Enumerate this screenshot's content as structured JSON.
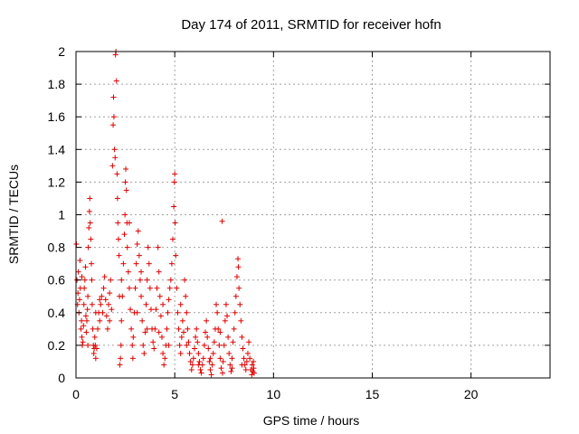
{
  "chart_data": {
    "type": "scatter",
    "title": "Day 174 of 2011, SRMTID for receiver hofn",
    "xlabel": "GPS time / hours",
    "ylabel": "SRMTID / TECUs",
    "xlim": [
      0,
      24
    ],
    "ylim": [
      0,
      2
    ],
    "xticks": [
      0,
      5,
      10,
      15,
      20
    ],
    "yticks": [
      0,
      0.2,
      0.4,
      0.6,
      0.8,
      1,
      1.2,
      1.4,
      1.6,
      1.8,
      2
    ],
    "grid": true,
    "marker": "+",
    "marker_color": "#e00000",
    "series": [
      {
        "points": [
          [
            0.02,
            0.82
          ],
          [
            0.05,
            0.6
          ],
          [
            0.08,
            0.45
          ],
          [
            0.1,
            0.52
          ],
          [
            0.12,
            0.65
          ],
          [
            0.15,
            0.4
          ],
          [
            0.18,
            0.48
          ],
          [
            0.2,
            0.72
          ],
          [
            0.22,
            0.55
          ],
          [
            0.25,
            0.3
          ],
          [
            0.28,
            0.35
          ],
          [
            0.3,
            0.25
          ],
          [
            0.32,
            0.2
          ],
          [
            0.35,
            0.22
          ],
          [
            0.38,
            0.32
          ],
          [
            0.4,
            0.45
          ],
          [
            0.42,
            0.55
          ],
          [
            0.45,
            0.6
          ],
          [
            0.48,
            0.68
          ],
          [
            0.5,
            0.38
          ],
          [
            0.52,
            0.28
          ],
          [
            0.55,
            0.35
          ],
          [
            0.58,
            0.42
          ],
          [
            0.6,
            0.5
          ],
          [
            0.62,
            0.8
          ],
          [
            0.65,
            0.92
          ],
          [
            0.68,
            1.02
          ],
          [
            0.7,
            1.1
          ],
          [
            0.72,
            0.95
          ],
          [
            0.75,
            0.85
          ],
          [
            0.78,
            0.7
          ],
          [
            0.8,
            0.6
          ],
          [
            0.82,
            0.45
          ],
          [
            0.85,
            0.3
          ],
          [
            0.88,
            0.2
          ],
          [
            0.9,
            0.15
          ],
          [
            0.92,
            0.18
          ],
          [
            0.95,
            0.25
          ],
          [
            0.98,
            0.2
          ],
          [
            1.0,
            0.12
          ],
          [
            1.05,
            0.18
          ],
          [
            1.1,
            0.3
          ],
          [
            1.15,
            0.4
          ],
          [
            1.2,
            0.35
          ],
          [
            1.25,
            0.45
          ],
          [
            1.3,
            0.5
          ],
          [
            1.35,
            0.4
          ],
          [
            1.4,
            0.55
          ],
          [
            1.45,
            0.62
          ],
          [
            1.5,
            0.48
          ],
          [
            1.55,
            0.38
          ],
          [
            1.6,
            0.3
          ],
          [
            1.65,
            0.45
          ],
          [
            1.7,
            0.52
          ],
          [
            1.75,
            0.6
          ],
          [
            1.8,
            0.42
          ],
          [
            1.85,
            1.3
          ],
          [
            1.88,
            1.55
          ],
          [
            1.9,
            1.72
          ],
          [
            1.92,
            1.6
          ],
          [
            1.95,
            1.4
          ],
          [
            1.98,
            1.35
          ],
          [
            2.0,
            1.98
          ],
          [
            2.02,
            2.0
          ],
          [
            2.05,
            1.82
          ],
          [
            2.08,
            1.25
          ],
          [
            2.1,
            1.1
          ],
          [
            2.12,
            0.95
          ],
          [
            2.15,
            0.85
          ],
          [
            2.18,
            0.75
          ],
          [
            2.2,
            0.5
          ],
          [
            2.22,
            0.08
          ],
          [
            2.25,
            0.12
          ],
          [
            2.28,
            0.2
          ],
          [
            2.3,
            0.35
          ],
          [
            2.35,
            0.5
          ],
          [
            2.4,
            0.7
          ],
          [
            2.45,
            0.88
          ],
          [
            2.48,
            1.0
          ],
          [
            2.5,
            1.2
          ],
          [
            2.52,
            1.28
          ],
          [
            2.55,
            1.15
          ],
          [
            2.58,
            0.95
          ],
          [
            2.6,
            0.8
          ],
          [
            2.65,
            0.65
          ],
          [
            2.7,
            0.55
          ],
          [
            2.75,
            0.42
          ],
          [
            2.8,
            0.3
          ],
          [
            2.85,
            0.2
          ],
          [
            2.88,
            0.12
          ],
          [
            2.9,
            0.25
          ],
          [
            2.95,
            0.4
          ],
          [
            3.0,
            0.55
          ],
          [
            3.05,
            0.7
          ],
          [
            3.1,
            0.82
          ],
          [
            3.15,
            0.9
          ],
          [
            3.2,
            0.75
          ],
          [
            3.25,
            0.6
          ],
          [
            3.3,
            0.5
          ],
          [
            3.35,
            0.35
          ],
          [
            3.4,
            0.2
          ],
          [
            3.45,
            0.15
          ],
          [
            3.5,
            0.28
          ],
          [
            3.55,
            0.45
          ],
          [
            3.6,
            0.6
          ],
          [
            3.65,
            0.8
          ],
          [
            3.7,
            0.7
          ],
          [
            3.75,
            0.55
          ],
          [
            3.8,
            0.42
          ],
          [
            3.85,
            0.3
          ],
          [
            3.9,
            0.22
          ],
          [
            3.95,
            0.18
          ],
          [
            4.0,
            0.3
          ],
          [
            4.05,
            0.42
          ],
          [
            4.1,
            0.55
          ],
          [
            4.15,
            0.8
          ],
          [
            4.2,
            0.65
          ],
          [
            4.25,
            0.5
          ],
          [
            4.3,
            0.38
          ],
          [
            4.35,
            0.25
          ],
          [
            4.4,
            0.15
          ],
          [
            4.45,
            0.08
          ],
          [
            4.5,
            0.12
          ],
          [
            4.55,
            0.2
          ],
          [
            4.6,
            0.3
          ],
          [
            4.65,
            0.4
          ],
          [
            4.7,
            0.48
          ],
          [
            4.75,
            0.55
          ],
          [
            4.8,
            0.6
          ],
          [
            4.85,
            0.7
          ],
          [
            4.9,
            0.85
          ],
          [
            4.95,
            1.05
          ],
          [
            4.98,
            1.2
          ],
          [
            5.0,
            1.25
          ],
          [
            5.02,
            0.95
          ],
          [
            5.05,
            0.75
          ],
          [
            5.1,
            0.55
          ],
          [
            5.15,
            0.4
          ],
          [
            5.2,
            0.3
          ],
          [
            5.25,
            0.2
          ],
          [
            5.3,
            0.15
          ],
          [
            5.35,
            0.25
          ],
          [
            5.4,
            0.35
          ],
          [
            5.45,
            0.28
          ],
          [
            5.5,
            0.6
          ],
          [
            5.55,
            0.5
          ],
          [
            5.6,
            0.4
          ],
          [
            5.65,
            0.3
          ],
          [
            5.7,
            0.22
          ],
          [
            5.75,
            0.15
          ],
          [
            5.8,
            0.1
          ],
          [
            5.85,
            0.05
          ],
          [
            5.9,
            0.08
          ],
          [
            5.95,
            0.12
          ],
          [
            6.0,
            0.18
          ],
          [
            6.05,
            0.25
          ],
          [
            6.1,
            0.3
          ],
          [
            6.15,
            0.22
          ],
          [
            6.2,
            0.15
          ],
          [
            6.25,
            0.1
          ],
          [
            6.3,
            0.05
          ],
          [
            6.35,
            0.03
          ],
          [
            6.4,
            0.08
          ],
          [
            6.45,
            0.12
          ],
          [
            6.5,
            0.2
          ],
          [
            6.55,
            0.28
          ],
          [
            6.6,
            0.35
          ],
          [
            6.65,
            0.25
          ],
          [
            6.7,
            0.18
          ],
          [
            6.75,
            0.1
          ],
          [
            6.8,
            0.05
          ],
          [
            6.85,
            0.02
          ],
          [
            6.9,
            0.08
          ],
          [
            6.95,
            0.15
          ],
          [
            7.0,
            0.22
          ],
          [
            7.05,
            0.3
          ],
          [
            7.1,
            0.45
          ],
          [
            7.15,
            0.4
          ],
          [
            7.2,
            0.3
          ],
          [
            7.25,
            0.2
          ],
          [
            7.3,
            0.12
          ],
          [
            7.35,
            0.06
          ],
          [
            7.4,
            0.96
          ],
          [
            7.42,
            0.03
          ],
          [
            7.45,
            0.1
          ],
          [
            7.5,
            0.2
          ],
          [
            7.55,
            0.35
          ],
          [
            7.6,
            0.45
          ],
          [
            7.65,
            0.38
          ],
          [
            7.7,
            0.25
          ],
          [
            7.75,
            0.15
          ],
          [
            7.8,
            0.08
          ],
          [
            7.85,
            0.04
          ],
          [
            7.9,
            0.12
          ],
          [
            7.95,
            0.22
          ],
          [
            8.0,
            0.3
          ],
          [
            8.05,
            0.4
          ],
          [
            8.1,
            0.5
          ],
          [
            8.15,
            0.62
          ],
          [
            8.2,
            0.73
          ],
          [
            8.22,
            0.68
          ],
          [
            8.25,
            0.55
          ],
          [
            8.3,
            0.45
          ],
          [
            8.35,
            0.35
          ],
          [
            8.4,
            0.25
          ],
          [
            8.45,
            0.18
          ],
          [
            8.5,
            0.12
          ],
          [
            8.55,
            0.08
          ],
          [
            8.6,
            0.05
          ],
          [
            8.65,
            0.1
          ],
          [
            8.7,
            0.15
          ],
          [
            8.75,
            0.22
          ],
          [
            8.8,
            0.12
          ],
          [
            8.85,
            0.05
          ],
          [
            8.9,
            0.02
          ],
          [
            8.92,
            0.08
          ],
          [
            8.95,
            0.04
          ],
          [
            8.98,
            0.1
          ],
          [
            9.0,
            0.06
          ],
          [
            9.02,
            0.03
          ],
          [
            0.3,
            0.62
          ],
          [
            0.6,
            0.2
          ],
          [
            1.2,
            0.48
          ],
          [
            1.7,
            0.35
          ],
          [
            2.3,
            0.6
          ],
          [
            3.1,
            0.4
          ],
          [
            3.6,
            0.3
          ],
          [
            4.2,
            0.28
          ],
          [
            4.7,
            0.2
          ],
          [
            5.6,
            0.2
          ],
          [
            6.2,
            0.08
          ],
          [
            6.8,
            0.12
          ],
          [
            7.3,
            0.28
          ],
          [
            7.9,
            0.06
          ],
          [
            8.4,
            0.08
          ],
          [
            1.0,
            0.4
          ],
          [
            2.7,
            0.95
          ],
          [
            3.3,
            0.65
          ],
          [
            4.4,
            0.45
          ],
          [
            5.3,
            0.45
          ]
        ]
      }
    ]
  }
}
